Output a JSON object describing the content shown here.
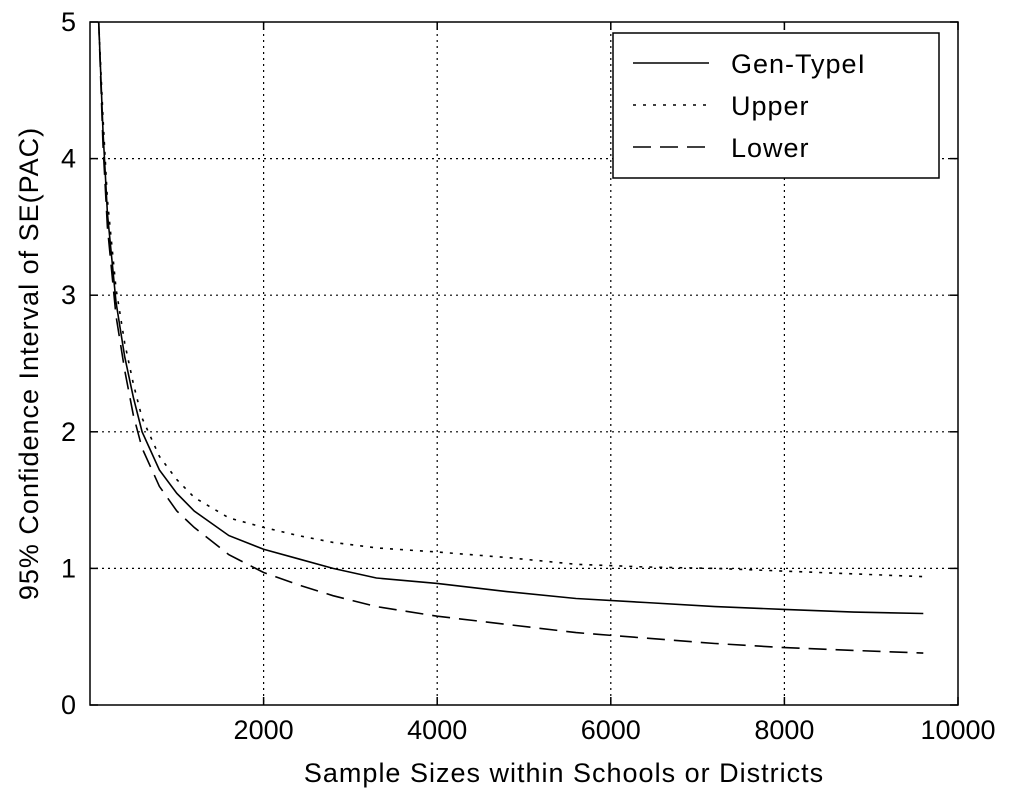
{
  "chart_data": {
    "type": "line",
    "title": "",
    "xlabel": "Sample Sizes within Schools or Districts",
    "ylabel": "95% Confidence Interval of SE(PAC)",
    "xlim": [
      0,
      10000
    ],
    "ylim": [
      0,
      5
    ],
    "xticks": [
      2000,
      4000,
      6000,
      8000,
      10000
    ],
    "yticks": [
      0,
      1,
      2,
      3,
      4,
      5
    ],
    "grid": true,
    "legend_position": "top-right",
    "series": [
      {
        "name": "Gen-TypeI",
        "style": "solid",
        "x": [
          100,
          150,
          200,
          300,
          400,
          500,
          600,
          800,
          1000,
          1200,
          1600,
          2000,
          2400,
          2800,
          3300,
          4000,
          4800,
          5600,
          6400,
          7200,
          8000,
          8800,
          9600
        ],
        "y": [
          5.0,
          4.2,
          3.6,
          2.95,
          2.55,
          2.25,
          2.0,
          1.72,
          1.55,
          1.42,
          1.24,
          1.14,
          1.07,
          1.0,
          0.93,
          0.89,
          0.83,
          0.78,
          0.75,
          0.72,
          0.7,
          0.68,
          0.67
        ]
      },
      {
        "name": "Upper",
        "style": "dotted",
        "x": [
          100,
          150,
          200,
          300,
          400,
          500,
          600,
          800,
          1000,
          1200,
          1600,
          2000,
          2400,
          2800,
          3300,
          4000,
          4800,
          5600,
          6400,
          7200,
          8000,
          8800,
          9600
        ],
        "y": [
          5.0,
          4.3,
          3.7,
          3.05,
          2.65,
          2.35,
          2.1,
          1.82,
          1.65,
          1.52,
          1.37,
          1.3,
          1.24,
          1.19,
          1.15,
          1.12,
          1.08,
          1.03,
          1.01,
          1.0,
          0.98,
          0.96,
          0.94
        ]
      },
      {
        "name": "Lower",
        "style": "dashed",
        "x": [
          100,
          150,
          200,
          300,
          400,
          500,
          600,
          800,
          1000,
          1200,
          1600,
          2000,
          2400,
          2800,
          3300,
          4000,
          4800,
          5600,
          6400,
          7200,
          8000,
          8800,
          9600
        ],
        "y": [
          5.0,
          4.1,
          3.5,
          2.85,
          2.45,
          2.12,
          1.88,
          1.6,
          1.42,
          1.3,
          1.1,
          0.97,
          0.88,
          0.8,
          0.72,
          0.65,
          0.59,
          0.53,
          0.49,
          0.45,
          0.42,
          0.4,
          0.38
        ]
      }
    ]
  }
}
